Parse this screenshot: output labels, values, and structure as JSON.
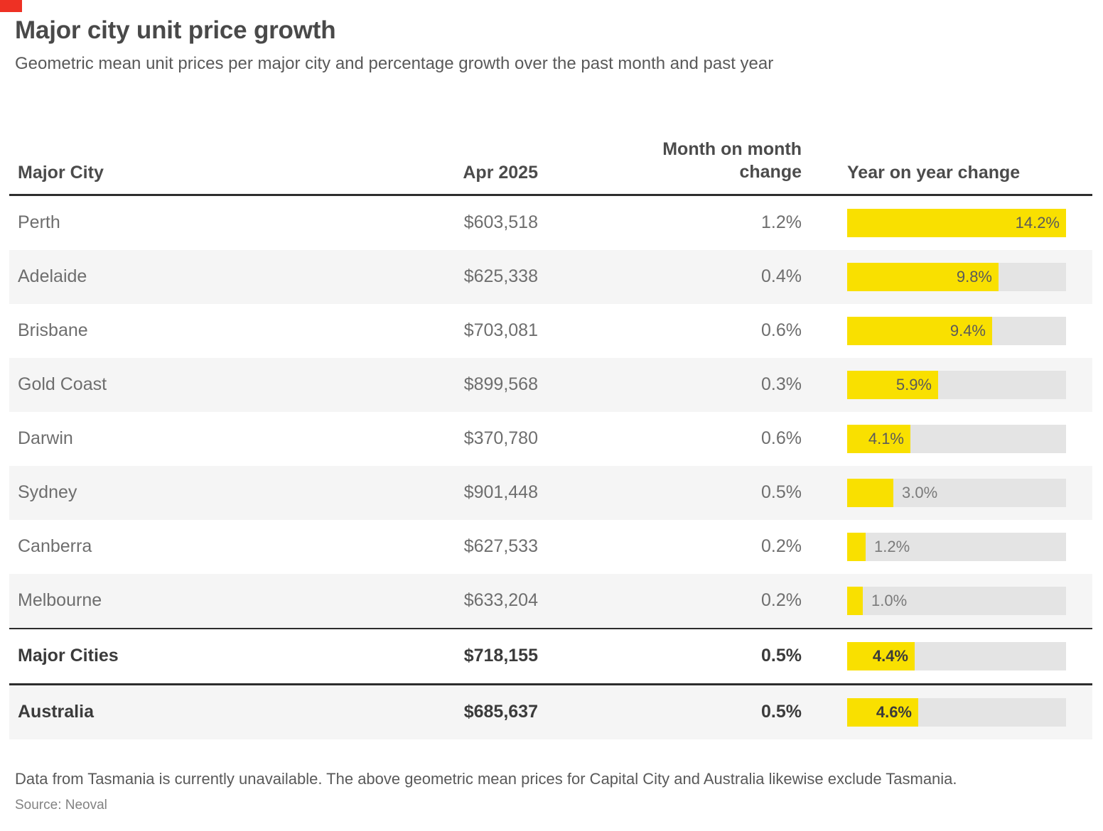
{
  "brand": {
    "corner_mark_color": "#ee3124"
  },
  "header": {
    "title": "Major city unit price growth",
    "subtitle": "Geometric mean unit prices per major city and percentage growth over the past month and past year"
  },
  "table": {
    "columns": {
      "city": "Major City",
      "price": "Apr 2025",
      "mom": "Month on month change",
      "yoy": "Year on year change"
    }
  },
  "chart_data": {
    "type": "table",
    "title": "Major city unit price growth",
    "subtitle": "Geometric mean unit prices per major city and percentage growth over the past month and past year",
    "columns": [
      "Major City",
      "Apr 2025",
      "Month on month change",
      "Year on year change"
    ],
    "bar_column": "Year on year change",
    "bar_type": "bar",
    "bar_max": 14.2,
    "bar_color": "#f9e000",
    "bar_track_color": "#e4e4e4",
    "rows": [
      {
        "city": "Perth",
        "apr_2025": "$603,518",
        "mom_change": "1.2%",
        "yoy_change_pct": 14.2,
        "yoy_label": "14.2%",
        "bold": false,
        "rule_above": null
      },
      {
        "city": "Adelaide",
        "apr_2025": "$625,338",
        "mom_change": "0.4%",
        "yoy_change_pct": 9.8,
        "yoy_label": "9.8%",
        "bold": false,
        "rule_above": null
      },
      {
        "city": "Brisbane",
        "apr_2025": "$703,081",
        "mom_change": "0.6%",
        "yoy_change_pct": 9.4,
        "yoy_label": "9.4%",
        "bold": false,
        "rule_above": null
      },
      {
        "city": "Gold Coast",
        "apr_2025": "$899,568",
        "mom_change": "0.3%",
        "yoy_change_pct": 5.9,
        "yoy_label": "5.9%",
        "bold": false,
        "rule_above": null
      },
      {
        "city": "Darwin",
        "apr_2025": "$370,780",
        "mom_change": "0.6%",
        "yoy_change_pct": 4.1,
        "yoy_label": "4.1%",
        "bold": false,
        "rule_above": null
      },
      {
        "city": "Sydney",
        "apr_2025": "$901,448",
        "mom_change": "0.5%",
        "yoy_change_pct": 3.0,
        "yoy_label": "3.0%",
        "bold": false,
        "rule_above": null
      },
      {
        "city": "Canberra",
        "apr_2025": "$627,533",
        "mom_change": "0.2%",
        "yoy_change_pct": 1.2,
        "yoy_label": "1.2%",
        "bold": false,
        "rule_above": null
      },
      {
        "city": "Melbourne",
        "apr_2025": "$633,204",
        "mom_change": "0.2%",
        "yoy_change_pct": 1.0,
        "yoy_label": "1.0%",
        "bold": false,
        "rule_above": null
      },
      {
        "city": "Major Cities",
        "apr_2025": "$718,155",
        "mom_change": "0.5%",
        "yoy_change_pct": 4.4,
        "yoy_label": "4.4%",
        "bold": true,
        "rule_above": "thin"
      },
      {
        "city": "Australia",
        "apr_2025": "$685,637",
        "mom_change": "0.5%",
        "yoy_change_pct": 4.6,
        "yoy_label": "4.6%",
        "bold": true,
        "rule_above": "thick"
      }
    ]
  },
  "footer": {
    "note": "Data from Tasmania is currently unavailable. The above geometric mean prices for Capital City and Australia likewise exclude Tasmania.",
    "source": "Source: Neoval"
  }
}
